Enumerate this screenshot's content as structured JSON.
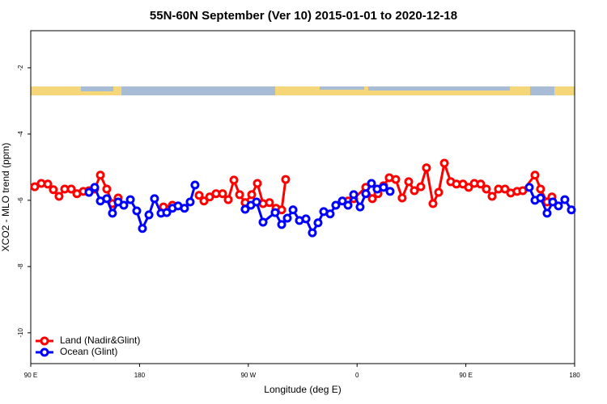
{
  "chart_data": {
    "type": "line",
    "title": "55N-60N September (Ver 10)   2015-01-01 to 2020-12-18",
    "x_label": "Longitude (deg E)",
    "y_label": "XCO2 - MLO trend (ppm)",
    "xlim": [
      90,
      540
    ],
    "ylim": [
      -10.93,
      -0.88
    ],
    "xticks": [
      {
        "value": 90,
        "label": "90 E"
      },
      180,
      {
        "value": 270,
        "label": "90 W"
      },
      {
        "value": 360,
        "label": "0"
      },
      {
        "value": 450,
        "label": "90 E"
      },
      {
        "value": 540,
        "label": "180"
      }
    ],
    "yticks": [
      -2,
      -4,
      -6,
      -8,
      -10
    ],
    "legend": "bottomleft",
    "series": [
      {
        "name": "Land (Nadir&Glint)",
        "color": "#ff0000",
        "x": [
          93.3,
          98.7,
          104.1,
          108.7,
          113.4,
          118.1,
          123.5,
          128.2,
          133.5,
          138.2,
          142.9,
          147.6,
          152.9,
          157.6,
          162.3,
          null,
          199.8,
          207.2,
          null,
          229.3,
          233.3,
          238.0,
          243.3,
          248.7,
          253.4,
          258.1,
          262.8,
          267.4,
          272.8,
          277.5,
          282.2,
          287.5,
          292.9,
          297.6,
          300.9,
          null,
          352.5,
          357.2,
          367.2,
          372.6,
          377.3,
          381.9,
          386.6,
          392.0,
          397.3,
          402.7,
          407.4,
          412.7,
          417.4,
          422.8,
          427.5,
          432.2,
          437.5,
          442.2,
          447.6,
          452.3,
          457.0,
          462.3,
          467.0,
          471.7,
          477.0,
          482.4,
          487.1,
          492.4,
          497.1,
          507.2,
          511.8,
          517.2,
          521.2
        ],
        "values": [
          -5.59,
          -5.49,
          -5.51,
          -5.68,
          -5.88,
          -5.66,
          -5.66,
          -5.8,
          -5.73,
          -5.71,
          -5.66,
          -5.24,
          -5.66,
          -6.1,
          -5.93,
          null,
          -6.2,
          -6.15,
          null,
          -5.85,
          -6.02,
          -5.9,
          -5.8,
          -5.8,
          -5.98,
          -5.39,
          -5.83,
          -6.07,
          -5.83,
          -5.49,
          -6.1,
          -6.07,
          -6.24,
          -6.29,
          -5.37,
          null,
          -6.02,
          -5.95,
          -5.61,
          -5.95,
          -5.8,
          -5.56,
          -5.32,
          -5.37,
          -5.93,
          -5.44,
          -5.71,
          -5.59,
          -5.02,
          -6.1,
          -5.76,
          -4.88,
          -5.44,
          -5.51,
          -5.51,
          -5.61,
          -5.49,
          -5.51,
          -5.66,
          -5.88,
          -5.66,
          -5.66,
          -5.78,
          -5.73,
          -5.71,
          -5.24,
          -5.66,
          -6.05,
          -5.9
        ]
      },
      {
        "name": "Ocean (Glint)",
        "color": "#0000ff",
        "x": [
          138.2,
          142.9,
          147.6,
          152.9,
          157.6,
          162.3,
          167.0,
          172.4,
          177.7,
          182.4,
          187.8,
          192.4,
          197.8,
          202.5,
          207.2,
          211.9,
          217.2,
          221.9,
          225.9,
          null,
          267.4,
          272.1,
          276.8,
          282.2,
          292.2,
          297.6,
          302.3,
          307.0,
          312.3,
          317.7,
          323.0,
          327.7,
          332.4,
          337.7,
          342.4,
          347.8,
          352.5,
          357.2,
          362.5,
          367.2,
          371.9,
          376.6,
          381.9,
          387.3,
          null,
          502.5,
          507.2,
          511.8,
          517.2,
          521.9,
          526.6,
          531.9,
          537.3
        ],
        "values": [
          -5.76,
          -5.61,
          -6.02,
          -5.95,
          -6.39,
          -6.05,
          -6.15,
          -5.98,
          -6.32,
          -6.85,
          -6.44,
          -5.95,
          -6.39,
          -6.37,
          -6.24,
          -6.17,
          -6.24,
          -6.05,
          -5.54,
          null,
          -6.27,
          -6.15,
          -6.05,
          -6.66,
          -6.37,
          -6.73,
          -6.54,
          -6.29,
          -6.61,
          -6.56,
          -6.98,
          -6.68,
          -6.34,
          -6.41,
          -6.15,
          -6.02,
          -6.15,
          -5.83,
          -6.2,
          -5.8,
          -5.49,
          -5.66,
          -5.61,
          -5.73,
          null,
          -5.61,
          -6.0,
          -5.93,
          -6.39,
          -6.05,
          -6.17,
          -5.98,
          -6.29
        ]
      }
    ]
  }
}
